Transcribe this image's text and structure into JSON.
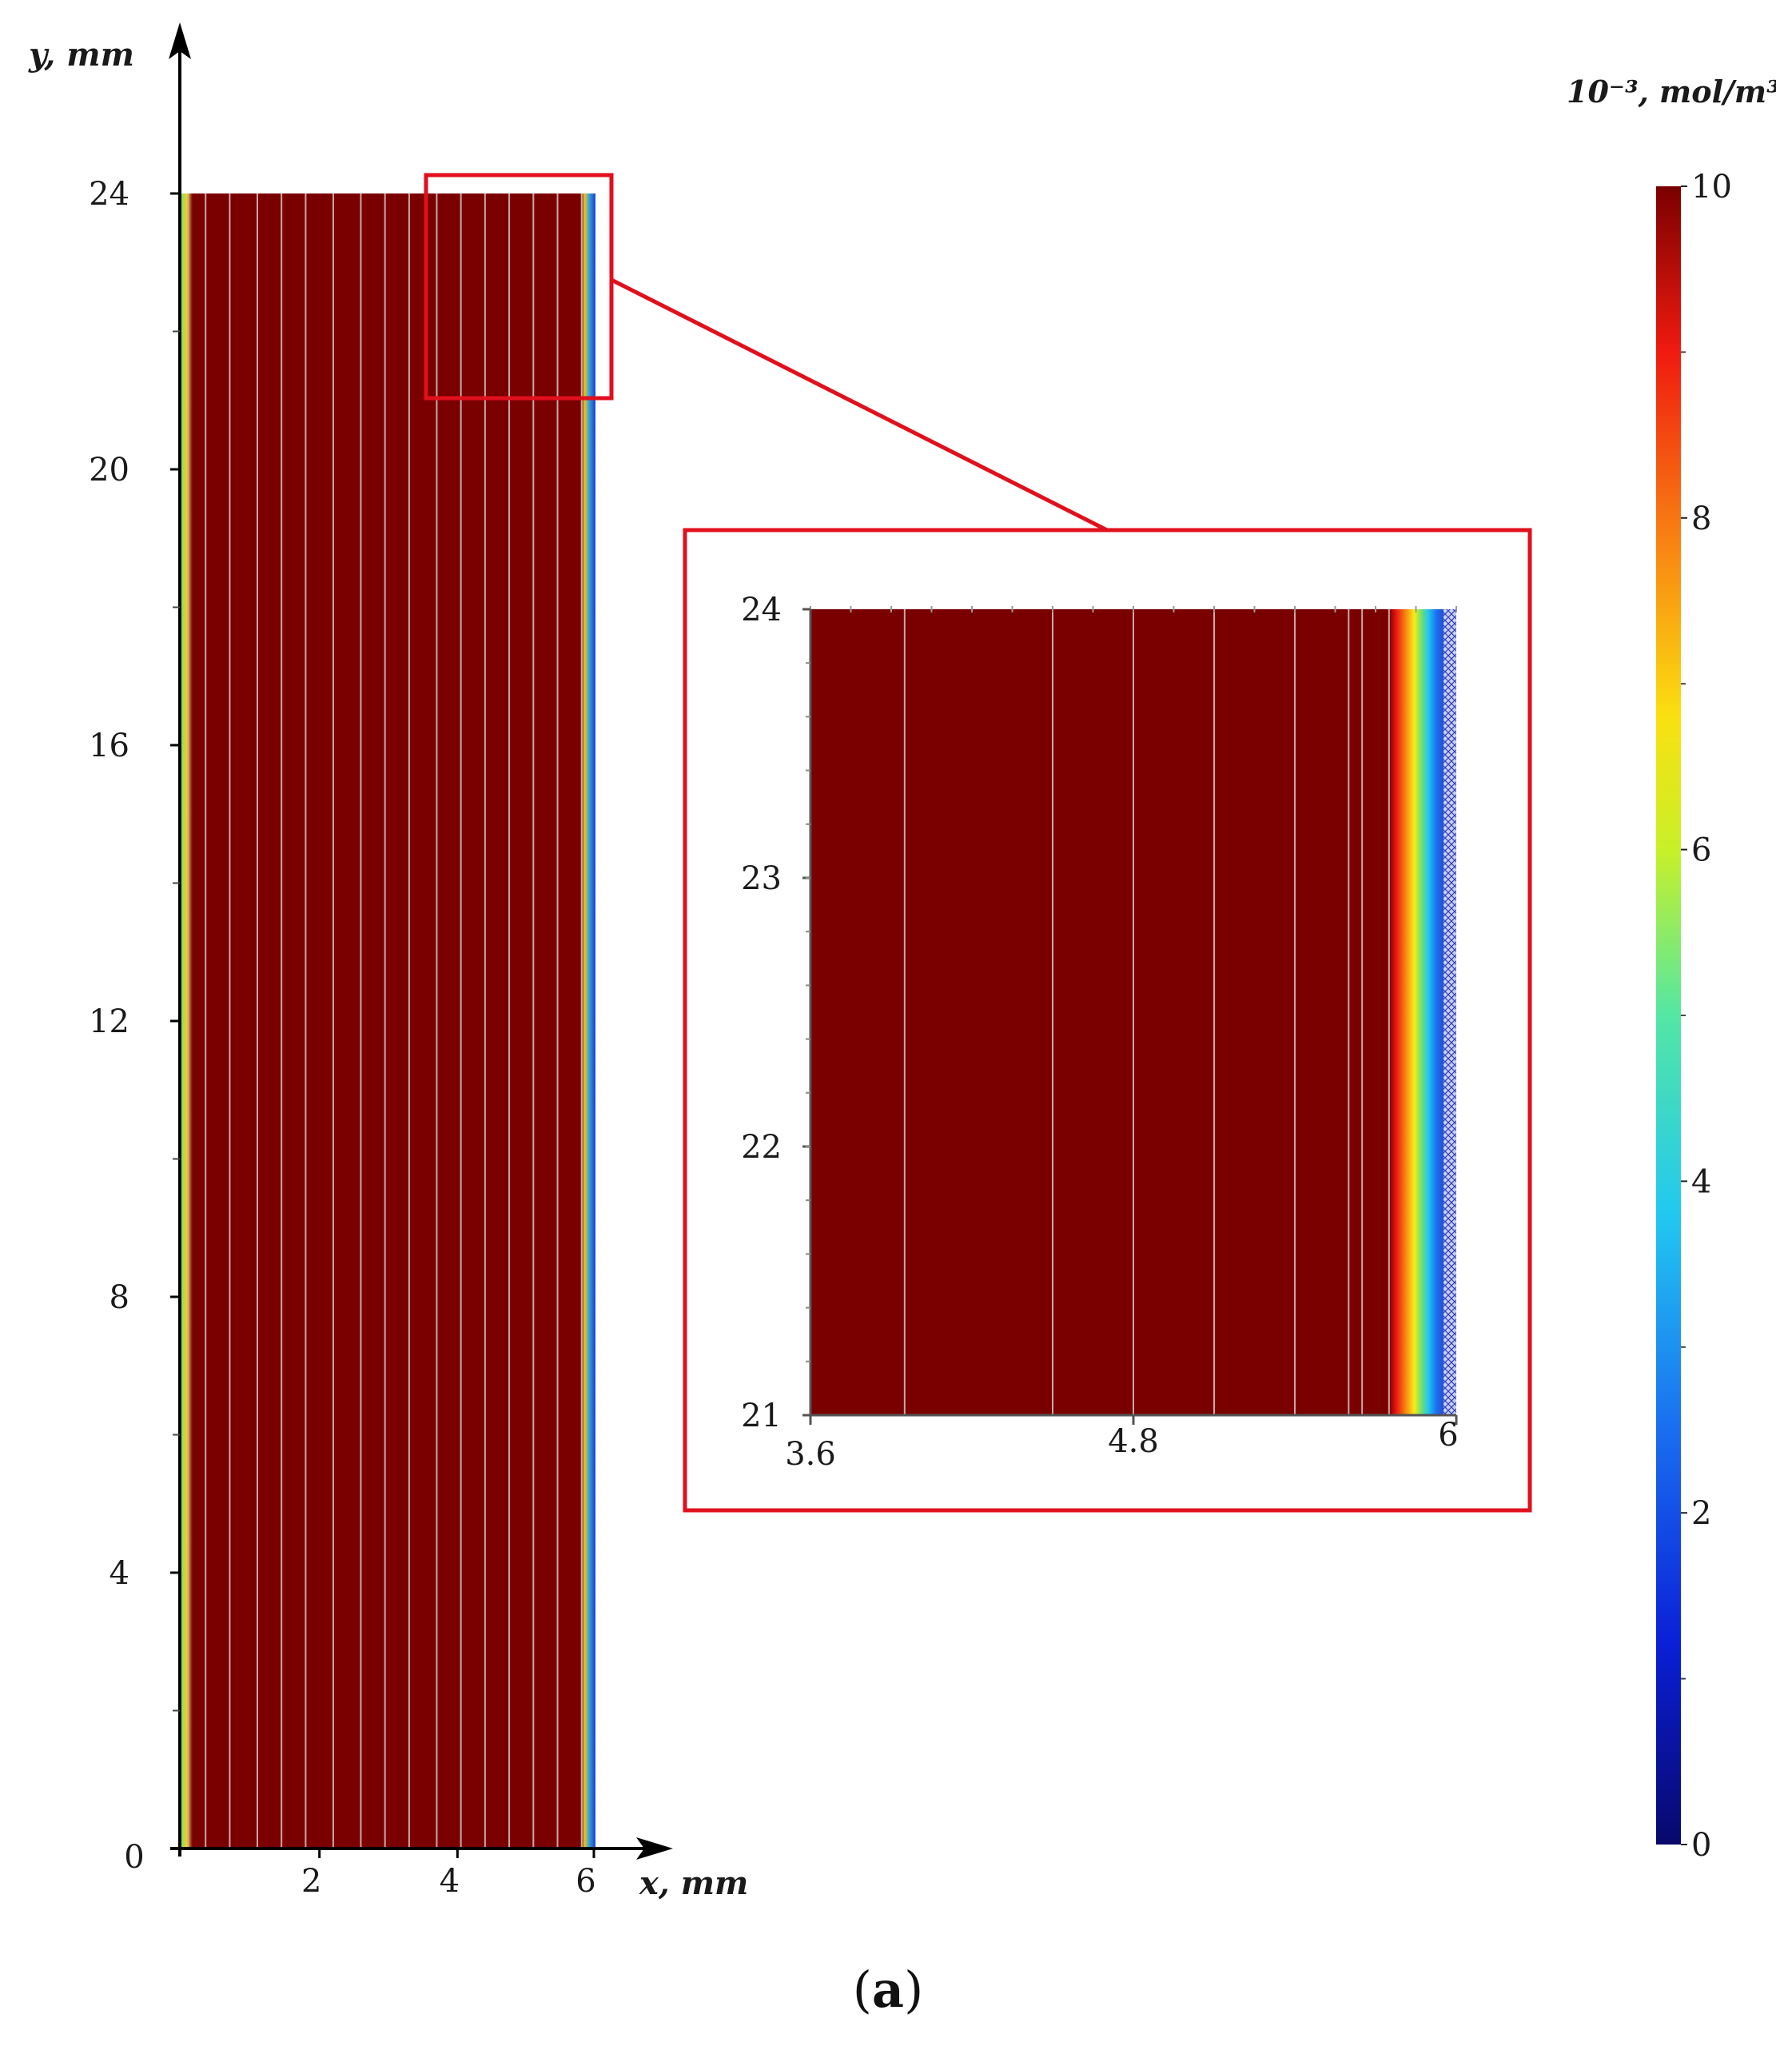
{
  "chart_data": [
    {
      "type": "heatmap",
      "name": "main",
      "xlabel": "x, mm",
      "ylabel": "y, mm",
      "xticks": [
        "2",
        "4",
        "6"
      ],
      "yticks": [
        "0",
        "4",
        "8",
        "12",
        "16",
        "20",
        "24"
      ],
      "xlim": [
        0,
        6
      ],
      "ylim": [
        0,
        24
      ],
      "domain": {
        "x": [
          0,
          6
        ],
        "y": [
          0,
          24
        ]
      },
      "value_interior": 10,
      "edge_profile_right": [
        {
          "x": 5.82,
          "value": 10
        },
        {
          "x": 5.86,
          "value": 8.5
        },
        {
          "x": 5.9,
          "value": 6.5
        },
        {
          "x": 5.94,
          "value": 4.5
        },
        {
          "x": 5.97,
          "value": 2.5
        },
        {
          "x": 6.0,
          "value": 1.0
        }
      ],
      "edge_profile_left": [
        {
          "x": 0.0,
          "value": 5.0
        },
        {
          "x": 0.05,
          "value": 7.5
        },
        {
          "x": 0.1,
          "value": 10
        }
      ],
      "mesh_lines_x": [
        0.1,
        0.35,
        0.7,
        1.1,
        1.45,
        1.8,
        2.2,
        2.6,
        2.95,
        3.3,
        3.7,
        4.05,
        4.4,
        4.75,
        5.1,
        5.45,
        5.8
      ]
    },
    {
      "type": "heatmap",
      "name": "inset-zoom",
      "xticks": [
        "3.6",
        "4.8",
        "6"
      ],
      "yticks": [
        "21",
        "22",
        "23",
        "24"
      ],
      "xlim": [
        3.6,
        6
      ],
      "ylim": [
        21,
        24
      ],
      "value_interior": 10,
      "edge_profile": [
        {
          "x": 5.75,
          "value": 10
        },
        {
          "x": 5.8,
          "value": 9
        },
        {
          "x": 5.84,
          "value": 7.5
        },
        {
          "x": 5.88,
          "value": 6
        },
        {
          "x": 5.92,
          "value": 4
        },
        {
          "x": 5.96,
          "value": 2.5
        },
        {
          "x": 6.0,
          "value": 1.5
        }
      ],
      "mesh_lines_x": [
        3.95,
        4.5,
        4.8,
        5.1,
        5.4,
        5.6,
        5.65,
        5.75
      ]
    }
  ],
  "colorbar": {
    "label": "10⁻³, mol/m³",
    "ticks": [
      "0",
      "2",
      "4",
      "6",
      "8",
      "10"
    ],
    "range": [
      0,
      10
    ],
    "colors": [
      "#08086b",
      "#1040e8",
      "#2ca6e6",
      "#1ee8e0",
      "#8ee04a",
      "#f4f01a",
      "#f89a12",
      "#f01a10",
      "#7a0000"
    ]
  },
  "colors": {
    "field": "#7a0000",
    "highlight_box": "#e0101c",
    "mesh": "#c8a8a8",
    "axis": "#000000"
  },
  "caption": {
    "open": "(",
    "letter": "a",
    "close": ")"
  }
}
